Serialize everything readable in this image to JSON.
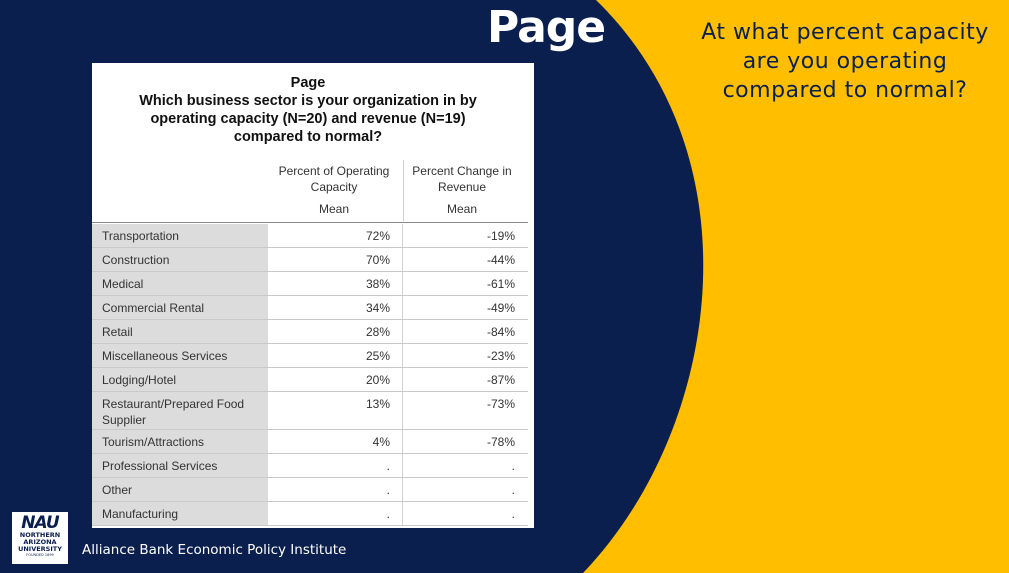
{
  "slide": {
    "title": "Page",
    "question": "At what percent capacity are you operating compared to normal?",
    "footer": "Alliance Bank Economic Policy Institute",
    "colors": {
      "navy": "#0b1f4f",
      "gold": "#ffbf00"
    }
  },
  "logo": {
    "mark": "NAU",
    "line1": "NORTHERN",
    "line2": "ARIZONA",
    "line3": "UNIVERSITY",
    "small": "FOUNDED 1899"
  },
  "table": {
    "title_lines": [
      "Page",
      "Which business sector is your organization in by",
      "operating capacity (N=20) and revenue (N=19)",
      "compared to normal?"
    ],
    "columns": [
      {
        "header": "Percent of Operating Capacity",
        "sub": "Mean"
      },
      {
        "header": "Percent Change in Revenue",
        "sub": "Mean"
      }
    ],
    "rows": [
      {
        "label": "Transportation",
        "capacity": "72%",
        "revenue": "-19%"
      },
      {
        "label": "Construction",
        "capacity": "70%",
        "revenue": "-44%"
      },
      {
        "label": "Medical",
        "capacity": "38%",
        "revenue": "-61%"
      },
      {
        "label": "Commercial Rental",
        "capacity": "34%",
        "revenue": "-49%"
      },
      {
        "label": "Retail",
        "capacity": "28%",
        "revenue": "-84%"
      },
      {
        "label": "Miscellaneous Services",
        "capacity": "25%",
        "revenue": "-23%"
      },
      {
        "label": "Lodging/Hotel",
        "capacity": "20%",
        "revenue": "-87%"
      },
      {
        "label": "Restaurant/Prepared Food Supplier",
        "capacity": "13%",
        "revenue": "-73%"
      },
      {
        "label": "Tourism/Attractions",
        "capacity": "4%",
        "revenue": "-78%"
      },
      {
        "label": "Professional Services",
        "capacity": ".",
        "revenue": "."
      },
      {
        "label": "Other",
        "capacity": ".",
        "revenue": "."
      },
      {
        "label": "Manufacturing",
        "capacity": ".",
        "revenue": "."
      }
    ]
  }
}
